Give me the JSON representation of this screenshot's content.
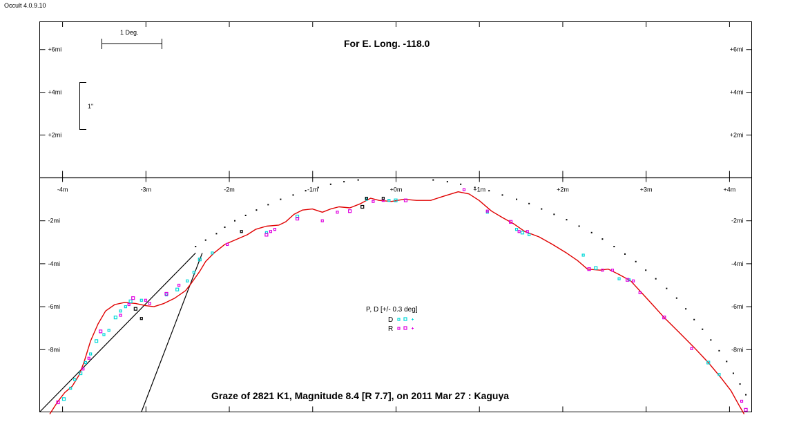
{
  "app": {
    "title": "Occult 4.0.9.10"
  },
  "chart_data": {
    "type": "scatter",
    "title": "Graze of  2821 K1,  Magnitude 8.4 [R 7.7],  on 2011 Mar 27  :  Kaguya",
    "subtitle": "For E. Long. -118.0",
    "scale": {
      "deg_label": "1 Deg.",
      "arcsec_label": "1\""
    },
    "x_ticks": [
      "-4m",
      "-3m",
      "-2m",
      "-1m",
      "+0m",
      "+1m",
      "+2m",
      "+3m",
      "+4m"
    ],
    "x_tick_values": [
      -4,
      -3,
      -2,
      -1,
      0,
      1,
      2,
      3,
      4
    ],
    "y_ticks_upper": [
      "+6mi",
      "+4mi",
      "+2mi"
    ],
    "y_tick_values_upper": [
      6,
      4,
      2
    ],
    "y_ticks_lower": [
      "-2mi",
      "-4mi",
      "-6mi",
      "-8mi"
    ],
    "y_tick_values_lower": [
      -2,
      -4,
      -6,
      -8
    ],
    "xlim": [
      -4.27,
      4.27
    ],
    "ylim_lower": [
      0,
      -10.9
    ],
    "ylim_upper": [
      0,
      7.3
    ],
    "legend": {
      "title": "P, D [+/- 0.3 deg]",
      "entries": [
        {
          "label": "D",
          "color": "#00d8d8"
        },
        {
          "label": "R",
          "color": "#e000e0"
        }
      ]
    },
    "colors": {
      "limb": "#e00000",
      "D": "#00d8d8",
      "R": "#e000e0",
      "axes": "#000000"
    },
    "limb_profile": [
      [
        -4.15,
        -11.0
      ],
      [
        -4.05,
        -10.4
      ],
      [
        -3.97,
        -10.0
      ],
      [
        -3.88,
        -9.7
      ],
      [
        -3.8,
        -9.2
      ],
      [
        -3.74,
        -8.6
      ],
      [
        -3.66,
        -7.6
      ],
      [
        -3.57,
        -6.8
      ],
      [
        -3.48,
        -6.2
      ],
      [
        -3.37,
        -5.9
      ],
      [
        -3.25,
        -5.8
      ],
      [
        -3.12,
        -5.85
      ],
      [
        -3.0,
        -5.95
      ],
      [
        -2.9,
        -6.0
      ],
      [
        -2.78,
        -5.85
      ],
      [
        -2.65,
        -5.6
      ],
      [
        -2.52,
        -5.25
      ],
      [
        -2.45,
        -4.9
      ],
      [
        -2.35,
        -4.35
      ],
      [
        -2.28,
        -3.9
      ],
      [
        -2.18,
        -3.5
      ],
      [
        -2.05,
        -3.1
      ],
      [
        -1.9,
        -2.85
      ],
      [
        -1.78,
        -2.65
      ],
      [
        -1.68,
        -2.4
      ],
      [
        -1.55,
        -2.25
      ],
      [
        -1.4,
        -2.2
      ],
      [
        -1.32,
        -2.05
      ],
      [
        -1.22,
        -1.7
      ],
      [
        -1.12,
        -1.5
      ],
      [
        -1.0,
        -1.45
      ],
      [
        -0.88,
        -1.6
      ],
      [
        -0.78,
        -1.45
      ],
      [
        -0.68,
        -1.35
      ],
      [
        -0.55,
        -1.4
      ],
      [
        -0.42,
        -1.2
      ],
      [
        -0.3,
        -0.95
      ],
      [
        -0.2,
        -1.05
      ],
      [
        -0.05,
        -1.1
      ],
      [
        0.1,
        -1.0
      ],
      [
        0.25,
        -1.05
      ],
      [
        0.42,
        -1.05
      ],
      [
        0.58,
        -0.85
      ],
      [
        0.75,
        -0.65
      ],
      [
        0.88,
        -0.75
      ],
      [
        1.0,
        -1.05
      ],
      [
        1.15,
        -1.55
      ],
      [
        1.28,
        -1.85
      ],
      [
        1.42,
        -2.15
      ],
      [
        1.55,
        -2.5
      ],
      [
        1.72,
        -2.75
      ],
      [
        1.88,
        -3.1
      ],
      [
        2.05,
        -3.5
      ],
      [
        2.18,
        -3.85
      ],
      [
        2.3,
        -4.25
      ],
      [
        2.45,
        -4.3
      ],
      [
        2.55,
        -4.25
      ],
      [
        2.68,
        -4.5
      ],
      [
        2.82,
        -4.8
      ],
      [
        2.95,
        -5.35
      ],
      [
        3.08,
        -5.9
      ],
      [
        3.22,
        -6.5
      ],
      [
        3.4,
        -7.2
      ],
      [
        3.58,
        -7.9
      ],
      [
        3.75,
        -8.6
      ],
      [
        3.9,
        -9.3
      ],
      [
        4.02,
        -9.9
      ],
      [
        4.12,
        -10.6
      ],
      [
        4.18,
        -11.0
      ]
    ],
    "mean_limb_dots": [
      [
        -2.4,
        -3.2
      ],
      [
        -2.28,
        -2.9
      ],
      [
        -2.15,
        -2.6
      ],
      [
        -2.05,
        -2.3
      ],
      [
        -1.93,
        -2.0
      ],
      [
        -1.8,
        -1.75
      ],
      [
        -1.67,
        -1.5
      ],
      [
        -1.53,
        -1.25
      ],
      [
        -1.38,
        -1.0
      ],
      [
        -1.23,
        -0.8
      ],
      [
        -1.08,
        -0.6
      ],
      [
        -0.93,
        -0.45
      ],
      [
        -0.78,
        -0.3
      ],
      [
        -0.62,
        -0.18
      ],
      [
        -0.45,
        -0.1
      ],
      [
        0.45,
        -0.1
      ],
      [
        0.62,
        -0.18
      ],
      [
        0.78,
        -0.3
      ],
      [
        0.95,
        -0.45
      ],
      [
        1.12,
        -0.6
      ],
      [
        1.28,
        -0.8
      ],
      [
        1.45,
        -1.0
      ],
      [
        1.6,
        -1.2
      ],
      [
        1.75,
        -1.45
      ],
      [
        1.9,
        -1.7
      ],
      [
        2.05,
        -1.95
      ],
      [
        2.2,
        -2.25
      ],
      [
        2.35,
        -2.55
      ],
      [
        2.48,
        -2.85
      ],
      [
        2.62,
        -3.2
      ],
      [
        2.75,
        -3.55
      ],
      [
        2.88,
        -3.9
      ],
      [
        3.0,
        -4.3
      ],
      [
        3.12,
        -4.7
      ],
      [
        3.25,
        -5.15
      ],
      [
        3.37,
        -5.6
      ],
      [
        3.48,
        -6.1
      ],
      [
        3.58,
        -6.6
      ],
      [
        3.68,
        -7.05
      ],
      [
        3.78,
        -7.55
      ],
      [
        3.88,
        -8.05
      ],
      [
        3.97,
        -8.55
      ],
      [
        4.05,
        -9.1
      ],
      [
        4.13,
        -9.6
      ],
      [
        4.2,
        -10.1
      ]
    ],
    "series": [
      {
        "name": "D",
        "points": [
          [
            -3.98,
            -10.3
          ],
          [
            -3.9,
            -9.8
          ],
          [
            -3.85,
            -9.4
          ],
          [
            -3.78,
            -9.1
          ],
          [
            -3.72,
            -8.6
          ],
          [
            -3.66,
            -8.2
          ],
          [
            -3.59,
            -7.6
          ],
          [
            -3.5,
            -7.3
          ],
          [
            -3.44,
            -7.1
          ],
          [
            -3.36,
            -6.5
          ],
          [
            -3.3,
            -6.2
          ],
          [
            -3.24,
            -6.0
          ],
          [
            -3.18,
            -5.75
          ],
          [
            -3.05,
            -5.7
          ],
          [
            -2.75,
            -5.45
          ],
          [
            -2.62,
            -5.2
          ],
          [
            -2.5,
            -4.8
          ],
          [
            -2.42,
            -4.4
          ],
          [
            -2.35,
            -3.8
          ],
          [
            -2.2,
            -3.5
          ],
          [
            -1.55,
            -2.55
          ],
          [
            -1.18,
            -1.8
          ],
          [
            -0.35,
            -1.0
          ],
          [
            -0.08,
            -1.05
          ],
          [
            0.0,
            -1.05
          ],
          [
            1.1,
            -1.6
          ],
          [
            1.45,
            -2.4
          ],
          [
            1.52,
            -2.55
          ],
          [
            1.6,
            -2.65
          ],
          [
            2.25,
            -3.6
          ],
          [
            2.4,
            -4.2
          ],
          [
            2.68,
            -4.7
          ],
          [
            2.8,
            -4.75
          ],
          [
            3.75,
            -8.6
          ],
          [
            3.88,
            -9.15
          ]
        ]
      },
      {
        "name": "R",
        "points": [
          [
            -4.05,
            -10.45
          ],
          [
            -3.75,
            -8.9
          ],
          [
            -3.68,
            -8.4
          ],
          [
            -3.54,
            -7.15
          ],
          [
            -3.3,
            -6.4
          ],
          [
            -3.2,
            -5.9
          ],
          [
            -3.15,
            -5.6
          ],
          [
            -3.0,
            -5.7
          ],
          [
            -2.95,
            -5.85
          ],
          [
            -2.75,
            -5.4
          ],
          [
            -2.6,
            -5.0
          ],
          [
            -2.02,
            -3.1
          ],
          [
            -1.55,
            -2.65
          ],
          [
            -1.5,
            -2.5
          ],
          [
            -1.45,
            -2.4
          ],
          [
            -1.18,
            -1.9
          ],
          [
            -0.88,
            -2.0
          ],
          [
            -0.7,
            -1.6
          ],
          [
            -0.55,
            -1.55
          ],
          [
            -0.27,
            -1.1
          ],
          [
            -0.15,
            -1.05
          ],
          [
            0.12,
            -1.05
          ],
          [
            0.82,
            -0.55
          ],
          [
            1.1,
            -1.55
          ],
          [
            1.38,
            -2.05
          ],
          [
            1.48,
            -2.5
          ],
          [
            1.58,
            -2.5
          ],
          [
            2.32,
            -4.25
          ],
          [
            2.48,
            -4.3
          ],
          [
            2.6,
            -4.3
          ],
          [
            2.78,
            -4.75
          ],
          [
            2.85,
            -4.8
          ],
          [
            2.93,
            -5.35
          ],
          [
            3.22,
            -6.5
          ],
          [
            3.55,
            -7.95
          ],
          [
            4.15,
            -10.4
          ],
          [
            4.2,
            -10.8
          ]
        ]
      },
      {
        "name": "other",
        "points": [
          [
            -3.12,
            -6.1
          ],
          [
            -3.05,
            -6.55
          ],
          [
            -1.85,
            -2.5
          ],
          [
            -0.4,
            -1.35
          ],
          [
            -0.35,
            -0.95
          ],
          [
            -0.15,
            -0.95
          ]
        ]
      }
    ],
    "boundary_lines": [
      [
        [
          -4.27,
          -10.9
        ],
        [
          -2.4,
          -3.5
        ]
      ],
      [
        [
          -3.05,
          -10.9
        ],
        [
          -2.32,
          -3.5
        ]
      ]
    ]
  }
}
